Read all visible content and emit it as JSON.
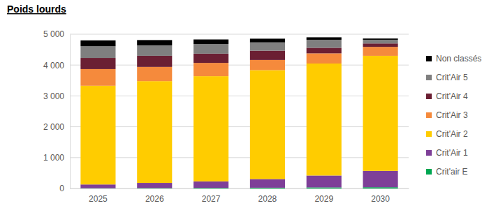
{
  "chart_data": {
    "type": "bar",
    "title": "Poids lourds",
    "stacked": true,
    "grid": true,
    "legend": "right",
    "categories": [
      "2025",
      "2026",
      "2027",
      "2028",
      "2029",
      "2030"
    ],
    "series": [
      {
        "name": "Crit'air E",
        "color": "#00a651",
        "values": [
          10,
          15,
          20,
          25,
          35,
          40
        ]
      },
      {
        "name": "Crit'Air 1",
        "color": "#7e3f98",
        "values": [
          120,
          165,
          210,
          280,
          385,
          530
        ]
      },
      {
        "name": "Crit'Air 2",
        "color": "#ffcc00",
        "values": [
          3200,
          3300,
          3410,
          3530,
          3630,
          3730
        ]
      },
      {
        "name": "Crit'Air 3",
        "color": "#f58a3c",
        "values": [
          540,
          460,
          430,
          330,
          330,
          290
        ]
      },
      {
        "name": "Crit'Air 4",
        "color": "#6b1f33",
        "values": [
          360,
          360,
          300,
          300,
          180,
          110
        ]
      },
      {
        "name": "Crit'Air 5",
        "color": "#7f7f7f",
        "values": [
          380,
          340,
          310,
          270,
          260,
          120
        ]
      },
      {
        "name": "Non classés",
        "color": "#000000",
        "values": [
          190,
          170,
          150,
          120,
          80,
          40
        ]
      }
    ],
    "ylim": [
      0,
      5000
    ],
    "yticks": [
      0,
      {
        "value": 1000,
        "label": "1 000"
      },
      {
        "value": 2000,
        "label": "2 000"
      },
      {
        "value": 3000,
        "label": "3 000"
      },
      {
        "value": 4000,
        "label": "4 000"
      },
      {
        "value": 5000,
        "label": "5 000"
      }
    ]
  }
}
